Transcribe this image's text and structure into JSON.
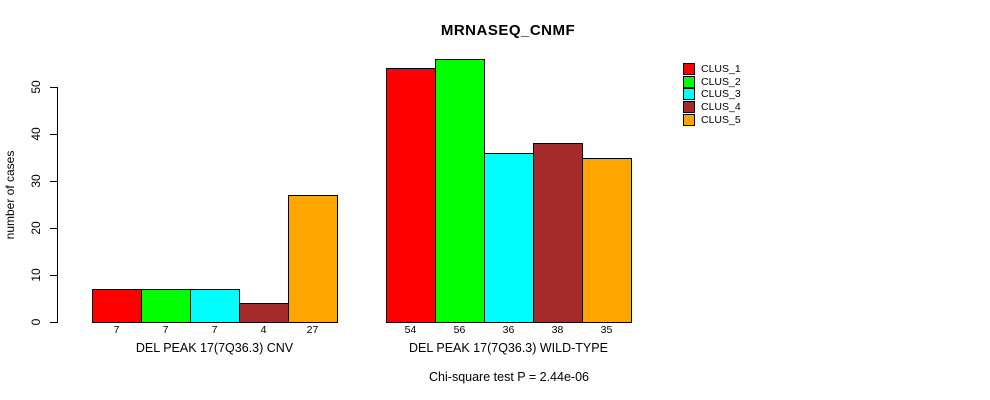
{
  "figure": {
    "title": "MRNASEQ_CNMF",
    "y_axis_label": "number of cases",
    "footer_annotation": "Chi-square test P = 2.44e-06"
  },
  "chart_data": {
    "type": "bar",
    "title": "MRNASEQ_CNMF",
    "xlabel": "",
    "ylabel": "number of cases",
    "ylim": [
      0,
      50
    ],
    "yticks": [
      0,
      10,
      20,
      30,
      40,
      50
    ],
    "grid": false,
    "legend_position": "right",
    "bar_border_color": "#000000",
    "categories": [
      "DEL PEAK 17(7Q36.3) CNV",
      "DEL PEAK 17(7Q36.3) WILD-TYPE"
    ],
    "series": [
      {
        "name": "CLUS_1",
        "color": "#FF0000",
        "values": [
          7,
          54
        ]
      },
      {
        "name": "CLUS_2",
        "color": "#00FF00",
        "values": [
          7,
          56
        ]
      },
      {
        "name": "CLUS_3",
        "color": "#00FFFF",
        "values": [
          7,
          36
        ]
      },
      {
        "name": "CLUS_4",
        "color": "#A52A2A",
        "values": [
          4,
          38
        ]
      },
      {
        "name": "CLUS_5",
        "color": "#FFA500",
        "values": [
          27,
          35
        ]
      }
    ],
    "annotation": "Chi-square test P = 2.44e-06"
  }
}
